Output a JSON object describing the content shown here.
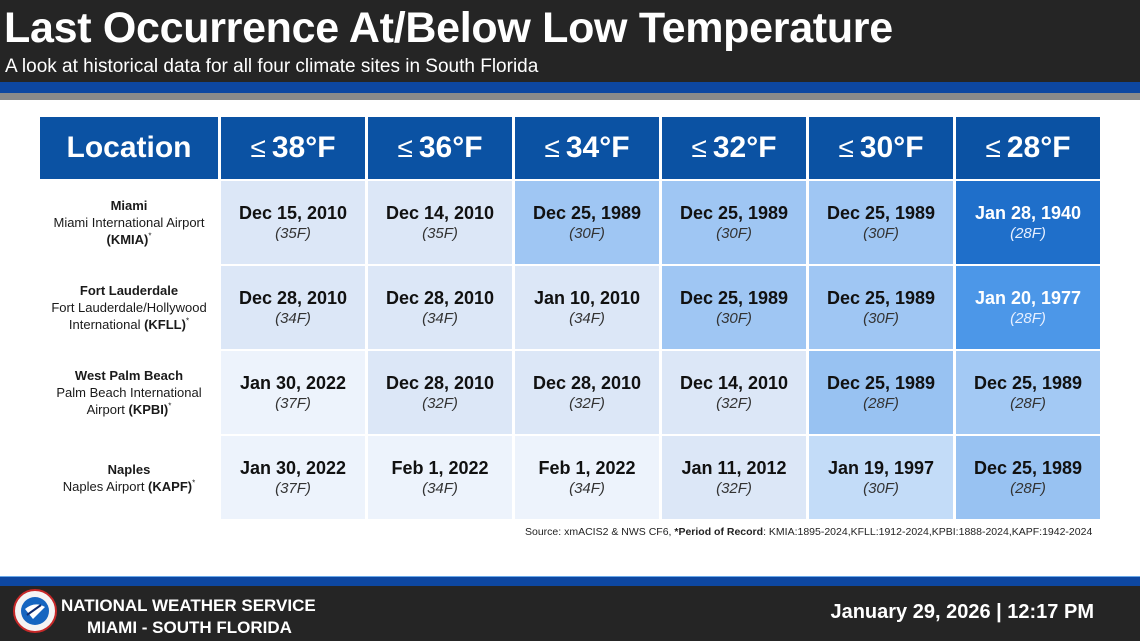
{
  "header": {
    "title": "Last Occurrence At/Below Low Temperature",
    "subtitle": "A look at historical data for all four climate sites in South Florida"
  },
  "table": {
    "location_header": "Location",
    "le_symbol": "≤",
    "thresholds": [
      "38°F",
      "36°F",
      "34°F",
      "32°F",
      "30°F",
      "28°F"
    ],
    "rows": [
      {
        "city": "Miami",
        "site_line1": "Miami International Airport",
        "site_line2_pre": "",
        "code": "(KMIA)",
        "asterisk": "*",
        "cells": [
          {
            "date": "Dec 15, 2010",
            "temp": "(35F)",
            "bg": "#dce7f7",
            "dark": false
          },
          {
            "date": "Dec 14, 2010",
            "temp": "(35F)",
            "bg": "#dce7f7",
            "dark": false
          },
          {
            "date": "Dec 25, 1989",
            "temp": "(30F)",
            "bg": "#9fc6f3",
            "dark": false
          },
          {
            "date": "Dec 25, 1989",
            "temp": "(30F)",
            "bg": "#9fc6f3",
            "dark": false
          },
          {
            "date": "Dec 25, 1989",
            "temp": "(30F)",
            "bg": "#9fc6f3",
            "dark": false
          },
          {
            "date": "Jan 28, 1940",
            "temp": "(28F)",
            "bg": "#1f6fca",
            "dark": true
          }
        ]
      },
      {
        "city": "Fort Lauderdale",
        "site_line1": "Fort Lauderdale/Hollywood",
        "site_line2_pre": "International ",
        "code": "(KFLL)",
        "asterisk": "*",
        "cells": [
          {
            "date": "Dec 28, 2010",
            "temp": "(34F)",
            "bg": "#dce7f7",
            "dark": false
          },
          {
            "date": "Dec 28, 2010",
            "temp": "(34F)",
            "bg": "#dce7f7",
            "dark": false
          },
          {
            "date": "Jan 10, 2010",
            "temp": "(34F)",
            "bg": "#dce7f7",
            "dark": false
          },
          {
            "date": "Dec 25, 1989",
            "temp": "(30F)",
            "bg": "#9fc6f3",
            "dark": false
          },
          {
            "date": "Dec 25, 1989",
            "temp": "(30F)",
            "bg": "#9fc6f3",
            "dark": false
          },
          {
            "date": "Jan 20, 1977",
            "temp": "(28F)",
            "bg": "#4c97e8",
            "dark": true
          }
        ]
      },
      {
        "city": "West Palm Beach",
        "site_line1": "Palm Beach International",
        "site_line2_pre": "Airport ",
        "code": "(KPBI)",
        "asterisk": "*",
        "cells": [
          {
            "date": "Jan 30, 2022",
            "temp": "(37F)",
            "bg": "#edf3fc",
            "dark": false
          },
          {
            "date": "Dec 28, 2010",
            "temp": "(32F)",
            "bg": "#dce7f7",
            "dark": false
          },
          {
            "date": "Dec 28, 2010",
            "temp": "(32F)",
            "bg": "#dce7f7",
            "dark": false
          },
          {
            "date": "Dec 14, 2010",
            "temp": "(32F)",
            "bg": "#dce7f7",
            "dark": false
          },
          {
            "date": "Dec 25, 1989",
            "temp": "(28F)",
            "bg": "#98c2f2",
            "dark": false
          },
          {
            "date": "Dec 25, 1989",
            "temp": "(28F)",
            "bg": "#a3c9f4",
            "dark": false
          }
        ]
      },
      {
        "city": "Naples",
        "site_line1": "",
        "site_line2_pre": "Naples Airport ",
        "code": "(KAPF)",
        "asterisk": "*",
        "cells": [
          {
            "date": "Jan 30, 2022",
            "temp": "(37F)",
            "bg": "#edf3fc",
            "dark": false
          },
          {
            "date": "Feb 1, 2022",
            "temp": "(34F)",
            "bg": "#edf3fc",
            "dark": false
          },
          {
            "date": "Feb 1, 2022",
            "temp": "(34F)",
            "bg": "#edf3fc",
            "dark": false
          },
          {
            "date": "Jan 11, 2012",
            "temp": "(32F)",
            "bg": "#dce7f7",
            "dark": false
          },
          {
            "date": "Jan 19, 1997",
            "temp": "(30F)",
            "bg": "#c3dcf8",
            "dark": false
          },
          {
            "date": "Dec 25, 1989",
            "temp": "(28F)",
            "bg": "#98c2f2",
            "dark": false
          }
        ]
      }
    ]
  },
  "source": {
    "prefix": "Source: xmACIS2 & NWS CF6, ",
    "bold": "*Period of Record",
    "suffix": ": KMIA:1895-2024,KFLL:1912-2024,KPBI:1888-2024,KAPF:1942-2024"
  },
  "footer": {
    "logo_icon": "nws-logo-icon",
    "org_line1": "NATIONAL WEATHER SERVICE",
    "org_line2": "MIAMI - SOUTH FLORIDA",
    "timestamp": "January 29, 2026 | 12:17 PM"
  },
  "colors": {
    "header_bg": "#252525",
    "accent_blue": "#0d47a1",
    "table_header_blue": "#0b52a3"
  }
}
